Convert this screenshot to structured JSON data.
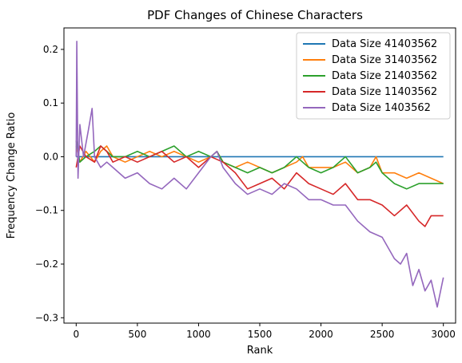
{
  "chart_data": {
    "type": "line",
    "title": "PDF Changes of Chinese Characters",
    "xlabel": "Rank",
    "ylabel": "Frequency Change Ratio",
    "xlim": [
      -100,
      3100
    ],
    "ylim": [
      -0.31,
      0.24
    ],
    "xticks": [
      0,
      500,
      1000,
      1500,
      2000,
      2500,
      3000
    ],
    "yticks": [
      -0.3,
      -0.2,
      -0.1,
      0.0,
      0.1,
      0.2
    ],
    "xtick_labels": [
      "0",
      "500",
      "1000",
      "1500",
      "2000",
      "2500",
      "3000"
    ],
    "ytick_labels": [
      "−0.3",
      "−0.2",
      "−0.1",
      "0.0",
      "0.1",
      "0.2"
    ],
    "legend_position": "top-right",
    "grid": false,
    "series": [
      {
        "name": "Data Size 41403562",
        "color": "#1f77b4",
        "x": [
          0,
          500,
          1000,
          1500,
          2000,
          2500,
          3000
        ],
        "y": [
          0.0,
          0.0,
          0.0,
          0.0,
          0.0,
          0.0,
          0.0
        ]
      },
      {
        "name": "Data Size 31403562",
        "color": "#ff7f0e",
        "x": [
          0,
          30,
          80,
          150,
          200,
          250,
          300,
          400,
          500,
          600,
          700,
          800,
          900,
          1000,
          1100,
          1150,
          1200,
          1300,
          1400,
          1500,
          1600,
          1700,
          1800,
          1850,
          1900,
          2000,
          2100,
          2200,
          2300,
          2400,
          2450,
          2500,
          2600,
          2700,
          2800,
          2900,
          3000
        ],
        "y": [
          0.02,
          -0.01,
          0.01,
          -0.01,
          0.01,
          0.02,
          0.0,
          -0.01,
          0.0,
          0.01,
          0.0,
          0.01,
          0.0,
          -0.01,
          0.0,
          0.01,
          -0.01,
          -0.02,
          -0.01,
          -0.02,
          -0.03,
          -0.02,
          -0.01,
          0.0,
          -0.02,
          -0.02,
          -0.02,
          -0.01,
          -0.03,
          -0.02,
          0.0,
          -0.03,
          -0.03,
          -0.04,
          -0.03,
          -0.04,
          -0.05
        ]
      },
      {
        "name": "Data Size 21403562",
        "color": "#2ca02c",
        "x": [
          0,
          30,
          80,
          150,
          200,
          250,
          300,
          400,
          500,
          600,
          700,
          800,
          900,
          1000,
          1100,
          1150,
          1200,
          1300,
          1400,
          1500,
          1600,
          1700,
          1800,
          1850,
          1900,
          2000,
          2100,
          2200,
          2300,
          2400,
          2450,
          2500,
          2600,
          2700,
          2800,
          2900,
          3000
        ],
        "y": [
          0.03,
          -0.01,
          0.0,
          0.01,
          0.02,
          0.01,
          0.0,
          0.0,
          0.01,
          0.0,
          0.01,
          0.02,
          0.0,
          0.01,
          0.0,
          0.01,
          -0.01,
          -0.02,
          -0.03,
          -0.02,
          -0.03,
          -0.02,
          0.0,
          -0.01,
          -0.02,
          -0.03,
          -0.02,
          0.0,
          -0.03,
          -0.02,
          -0.01,
          -0.03,
          -0.05,
          -0.06,
          -0.05,
          -0.05,
          -0.05
        ]
      },
      {
        "name": "Data Size 11403562",
        "color": "#d62728",
        "x": [
          0,
          30,
          80,
          150,
          200,
          250,
          300,
          400,
          500,
          600,
          700,
          800,
          900,
          1000,
          1100,
          1200,
          1300,
          1400,
          1500,
          1600,
          1700,
          1800,
          1900,
          2000,
          2100,
          2200,
          2300,
          2400,
          2500,
          2600,
          2700,
          2800,
          2850,
          2900,
          3000
        ],
        "y": [
          -0.02,
          0.02,
          0.0,
          -0.01,
          0.02,
          0.01,
          -0.01,
          0.0,
          -0.01,
          0.0,
          0.01,
          -0.01,
          0.0,
          -0.02,
          0.0,
          -0.01,
          -0.03,
          -0.06,
          -0.05,
          -0.04,
          -0.06,
          -0.03,
          -0.05,
          -0.06,
          -0.07,
          -0.05,
          -0.08,
          -0.08,
          -0.09,
          -0.11,
          -0.09,
          -0.12,
          -0.13,
          -0.11,
          -0.11
        ]
      },
      {
        "name": "Data Size 1403562",
        "color": "#9467bd",
        "x": [
          0,
          5,
          15,
          30,
          60,
          100,
          130,
          150,
          200,
          250,
          300,
          400,
          500,
          600,
          700,
          800,
          900,
          1000,
          1100,
          1150,
          1200,
          1300,
          1400,
          1500,
          1600,
          1700,
          1800,
          1900,
          2000,
          2100,
          2200,
          2300,
          2400,
          2500,
          2600,
          2650,
          2700,
          2750,
          2800,
          2850,
          2900,
          2950,
          3000
        ],
        "y": [
          0.0,
          0.215,
          -0.04,
          0.06,
          0.0,
          0.05,
          0.09,
          0.0,
          -0.02,
          -0.01,
          -0.02,
          -0.04,
          -0.03,
          -0.05,
          -0.06,
          -0.04,
          -0.06,
          -0.03,
          0.0,
          0.01,
          -0.02,
          -0.05,
          -0.07,
          -0.06,
          -0.07,
          -0.05,
          -0.06,
          -0.08,
          -0.08,
          -0.09,
          -0.09,
          -0.12,
          -0.14,
          -0.15,
          -0.19,
          -0.2,
          -0.18,
          -0.24,
          -0.21,
          -0.25,
          -0.23,
          -0.28,
          -0.225
        ]
      }
    ]
  }
}
